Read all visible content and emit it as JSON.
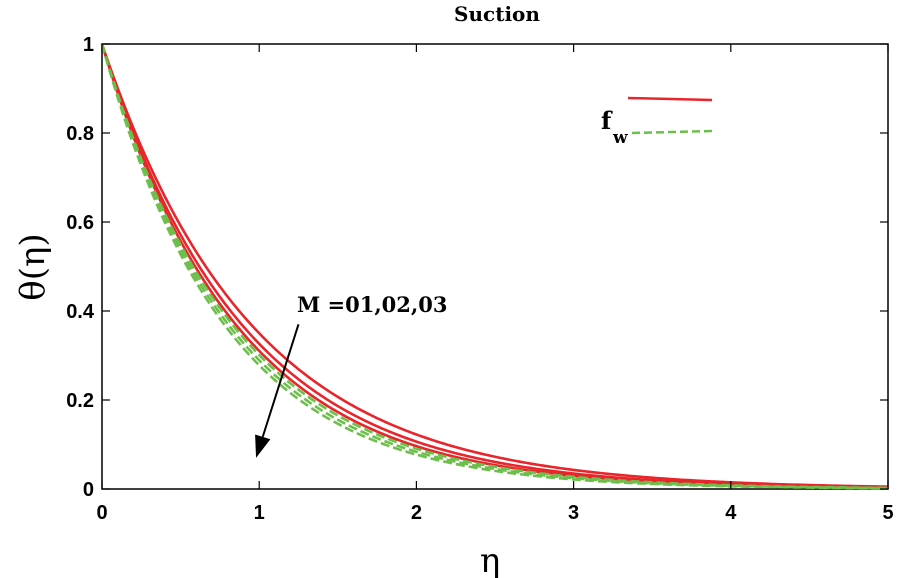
{
  "chart_data": {
    "type": "line",
    "title": "Suction",
    "xlabel": "η",
    "ylabel": "θ(η)",
    "xlim": [
      0,
      5
    ],
    "ylim": [
      0,
      1
    ],
    "xticks": [
      "0",
      "1",
      "2",
      "3",
      "4",
      "5"
    ],
    "yticks": [
      "0",
      "0.2",
      "0.4",
      "0.6",
      "0.8",
      "1"
    ],
    "grid": false,
    "legend": {
      "location": "top-right",
      "label": "f",
      "subscript": "w"
    },
    "annotation": {
      "text": "M =01,02,03",
      "arrow_from": [
        1.25,
        0.37
      ],
      "arrow_to": [
        0.98,
        0.07
      ]
    },
    "series": [
      {
        "name": "f_w solid M=01",
        "color": "#e8252a",
        "dash": "solid",
        "decay": 1.05,
        "x": [
          0,
          0.25,
          0.5,
          0.75,
          1,
          1.25,
          1.5,
          2,
          2.5,
          3,
          3.5,
          4,
          4.5,
          5
        ],
        "y": [
          1,
          0.769,
          0.592,
          0.455,
          0.35,
          0.269,
          0.207,
          0.122,
          0.072,
          0.043,
          0.025,
          0.015,
          0.009,
          0.005
        ]
      },
      {
        "name": "f_w solid M=02",
        "color": "#e8252a",
        "dash": "solid",
        "decay": 1.12,
        "x": [
          0,
          0.25,
          0.5,
          0.75,
          1,
          1.25,
          1.5,
          2,
          2.5,
          3,
          3.5,
          4,
          4.5,
          5
        ],
        "y": [
          1,
          0.756,
          0.571,
          0.432,
          0.326,
          0.247,
          0.186,
          0.106,
          0.061,
          0.035,
          0.02,
          0.011,
          0.006,
          0.004
        ]
      },
      {
        "name": "f_w solid M=03",
        "color": "#e8252a",
        "dash": "solid",
        "decay": 1.17,
        "x": [
          0,
          0.25,
          0.5,
          0.75,
          1,
          1.25,
          1.5,
          2,
          2.5,
          3,
          3.5,
          4,
          4.5,
          5
        ],
        "y": [
          1,
          0.747,
          0.557,
          0.416,
          0.31,
          0.232,
          0.173,
          0.096,
          0.054,
          0.03,
          0.017,
          0.009,
          0.005,
          0.003
        ]
      },
      {
        "name": "f_w dashed M=01",
        "color": "#6dbf4b",
        "dash": "dashed",
        "decay": 1.2,
        "x": [
          0,
          0.25,
          0.5,
          0.75,
          1,
          1.25,
          1.5,
          2,
          2.5,
          3,
          3.5,
          4,
          4.5,
          5
        ],
        "y": [
          1,
          0.741,
          0.549,
          0.407,
          0.301,
          0.223,
          0.165,
          0.091,
          0.05,
          0.027,
          0.015,
          0.008,
          0.005,
          0.003
        ]
      },
      {
        "name": "f_w dashed M=02",
        "color": "#6dbf4b",
        "dash": "dashed",
        "decay": 1.24,
        "x": [
          0,
          0.25,
          0.5,
          0.75,
          1,
          1.25,
          1.5,
          2,
          2.5,
          3,
          3.5,
          4,
          4.5,
          5
        ],
        "y": [
          1,
          0.733,
          0.538,
          0.395,
          0.289,
          0.212,
          0.156,
          0.084,
          0.045,
          0.024,
          0.013,
          0.007,
          0.004,
          0.002
        ]
      },
      {
        "name": "f_w dashed M=03",
        "color": "#6dbf4b",
        "dash": "dashed",
        "decay": 1.28,
        "x": [
          0,
          0.25,
          0.5,
          0.75,
          1,
          1.25,
          1.5,
          2,
          2.5,
          3,
          3.5,
          4,
          4.5,
          5
        ],
        "y": [
          1,
          0.726,
          0.527,
          0.383,
          0.278,
          0.202,
          0.147,
          0.077,
          0.041,
          0.021,
          0.011,
          0.006,
          0.003,
          0.002
        ]
      }
    ]
  }
}
